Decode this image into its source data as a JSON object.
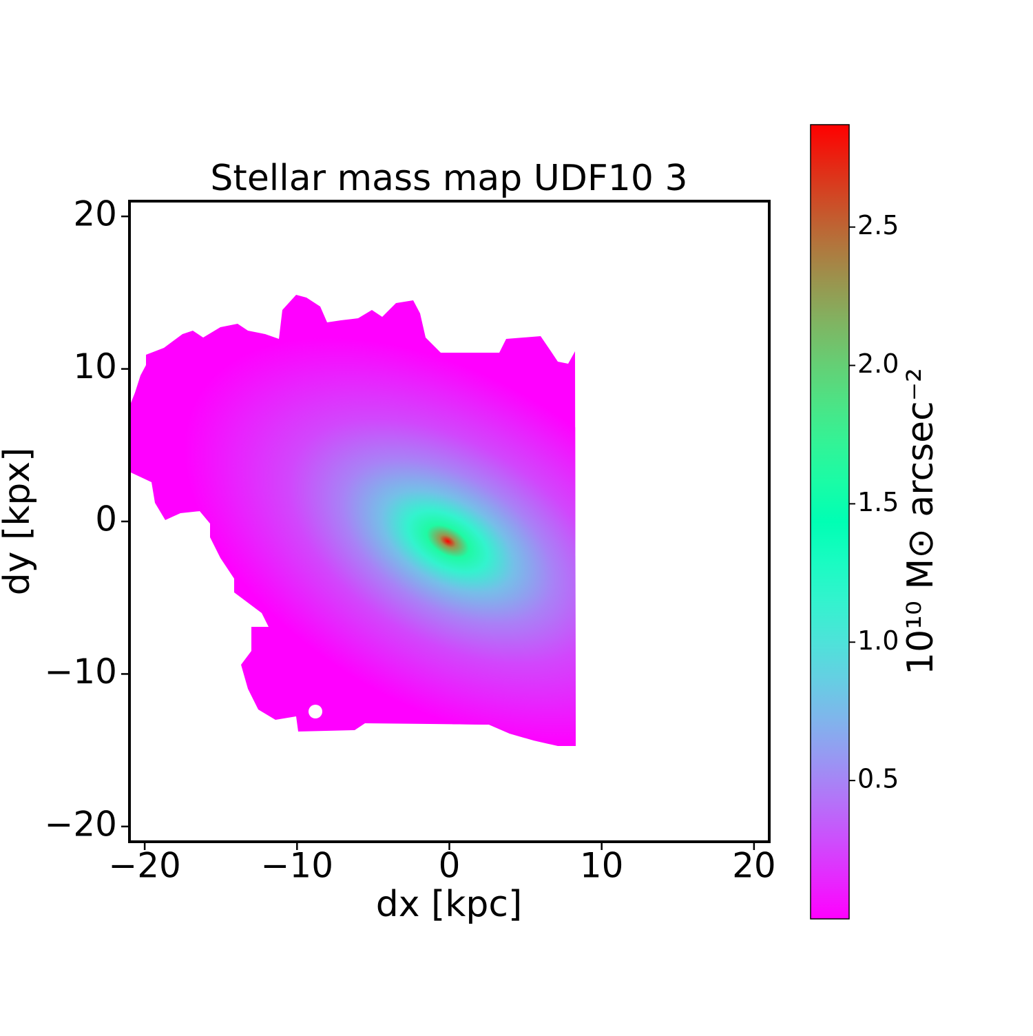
{
  "chart_data": {
    "type": "image",
    "title": "Stellar mass map UDF10 3",
    "xlabel": "dx [kpc]",
    "ylabel": "dy [kpx]",
    "xlim": [
      -21,
      21
    ],
    "ylim": [
      -21,
      21
    ],
    "xticks": [
      {
        "value": -20,
        "label": "−20"
      },
      {
        "value": -10,
        "label": "−10"
      },
      0,
      10,
      20
    ],
    "yticks": [
      {
        "value": -20,
        "label": "−20"
      },
      {
        "value": -10,
        "label": "−10"
      },
      0,
      10,
      20
    ],
    "colormap": "rainbow",
    "clim": [
      0,
      2.87
    ],
    "cticks": [
      0.5,
      {
        "value": 1,
        "label": "1.0"
      },
      1.5,
      {
        "value": 2,
        "label": "2.0"
      },
      2.5
    ],
    "colorbar_label": "10¹⁰ M⊙ arcsec⁻²",
    "peak": {
      "x": -0.1,
      "y": -1.3,
      "value": 2.87
    }
  }
}
